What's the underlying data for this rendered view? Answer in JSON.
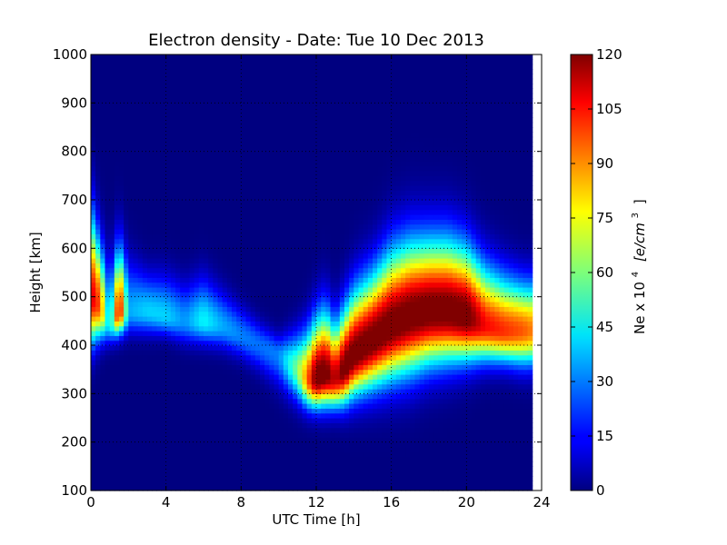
{
  "chart_data": {
    "type": "heatmap",
    "title": "Electron density - Date: Tue 10 Dec 2013",
    "xlabel": "UTC Time [h]",
    "ylabel": "Height [km]",
    "xlim": [
      0,
      24
    ],
    "ylim": [
      100,
      1000
    ],
    "x_ticks": [
      "0",
      "4",
      "8",
      "12",
      "16",
      "20",
      "24"
    ],
    "y_ticks": [
      "100",
      "200",
      "300",
      "400",
      "500",
      "600",
      "700",
      "800",
      "900",
      "1000"
    ],
    "grid": true,
    "colormap": "jet",
    "colorbar": {
      "label_main": "Ne x 10",
      "label_exp": "4",
      "label_units": "[e/cm",
      "label_units_exp": "3",
      "label_close": "]",
      "range": [
        0,
        120
      ],
      "ticks": [
        "0",
        "15",
        "30",
        "45",
        "60",
        "75",
        "90",
        "105",
        "120"
      ]
    },
    "layers": {
      "hours": [
        0,
        0.5,
        1,
        1.5,
        2,
        3,
        4,
        5,
        6,
        7,
        8,
        9,
        10,
        11,
        11.5,
        12,
        12.5,
        13,
        13.5,
        14,
        15,
        16,
        17,
        18,
        19,
        20,
        21,
        22,
        23,
        23.5
      ],
      "peak_height_km": [
        500,
        480,
        440,
        470,
        470,
        470,
        460,
        450,
        450,
        440,
        420,
        400,
        380,
        350,
        330,
        330,
        340,
        330,
        350,
        380,
        410,
        440,
        460,
        470,
        470,
        460,
        440,
        430,
        430,
        430
      ],
      "peak_density": [
        110,
        95,
        30,
        115,
        35,
        40,
        40,
        32,
        45,
        35,
        30,
        28,
        30,
        60,
        90,
        125,
        125,
        110,
        125,
        125,
        125,
        125,
        125,
        125,
        125,
        125,
        105,
        100,
        95,
        90
      ],
      "bottom_height_km": [
        350,
        380,
        380,
        400,
        400,
        400,
        400,
        380,
        380,
        370,
        350,
        320,
        280,
        250,
        240,
        240,
        240,
        240,
        240,
        250,
        260,
        270,
        280,
        300,
        310,
        320,
        330,
        330,
        320,
        320
      ],
      "top_height_km": [
        800,
        700,
        650,
        700,
        650,
        600,
        600,
        580,
        600,
        560,
        520,
        480,
        450,
        480,
        500,
        540,
        560,
        520,
        560,
        600,
        640,
        700,
        720,
        720,
        720,
        700,
        650,
        620,
        600,
        600
      ]
    }
  }
}
